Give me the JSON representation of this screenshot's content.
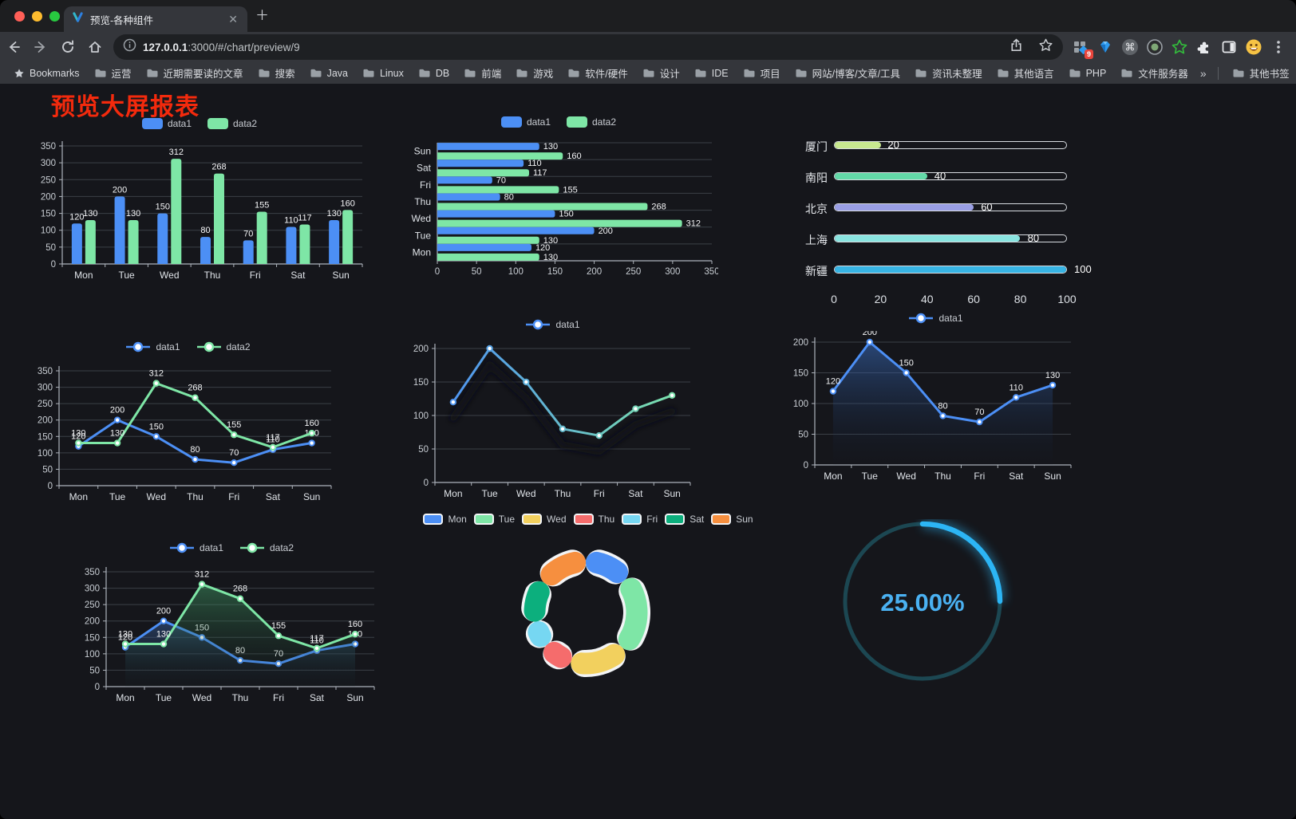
{
  "browser": {
    "tab_title": "预览-各种组件",
    "url_host": "127.0.0.1",
    "url_rest": ":3000/#/chart/preview/9",
    "bookmarks_label": "Bookmarks",
    "bookmark_folders": [
      "运营",
      "近期需要读的文章",
      "搜索",
      "Java",
      "Linux",
      "DB",
      "前端",
      "游戏",
      "软件/硬件",
      "设计",
      "IDE",
      "项目",
      "网站/博客/文章/工具",
      "资讯未整理",
      "其他语言",
      "PHP",
      "文件服务器"
    ],
    "bookmarks_overflow": "»",
    "other_bookmarks": "其他书签",
    "extension_badge": "9"
  },
  "page": {
    "title": "预览大屏报表",
    "title_color": "#F32A0D",
    "background": "#15161B"
  },
  "chart_data": [
    {
      "id": "bar-vertical",
      "type": "bar",
      "categories": [
        "Mon",
        "Tue",
        "Wed",
        "Thu",
        "Fri",
        "Sat",
        "Sun"
      ],
      "series": [
        {
          "name": "data1",
          "color": "#4C8FF5",
          "values": [
            120,
            200,
            150,
            80,
            70,
            110,
            130
          ]
        },
        {
          "name": "data2",
          "color": "#7EE6A6",
          "values": [
            130,
            130,
            312,
            268,
            155,
            117,
            160
          ]
        }
      ],
      "ylim": [
        0,
        350
      ],
      "ytick": 50,
      "legend_position": "top",
      "grid": true
    },
    {
      "id": "bar-horizontal",
      "type": "bar-horizontal",
      "categories": [
        "Sun",
        "Sat",
        "Fri",
        "Thu",
        "Wed",
        "Tue",
        "Mon"
      ],
      "series": [
        {
          "name": "data1",
          "color": "#4C8FF5",
          "values": [
            130,
            110,
            70,
            80,
            150,
            200,
            120
          ]
        },
        {
          "name": "data2",
          "color": "#7EE6A6",
          "values": [
            160,
            117,
            155,
            268,
            312,
            130,
            130
          ]
        }
      ],
      "xlim": [
        0,
        350
      ],
      "xtick": 50,
      "legend_position": "top",
      "grid": true
    },
    {
      "id": "capsule",
      "type": "capsule",
      "rows": [
        {
          "label": "厦门",
          "value": 20,
          "color": "#C8E88F"
        },
        {
          "label": "南阳",
          "value": 40,
          "color": "#63D9A8"
        },
        {
          "label": "北京",
          "value": 60,
          "color": "#9A9FE5"
        },
        {
          "label": "上海",
          "value": 80,
          "color": "#89E4E0"
        },
        {
          "label": "新疆",
          "value": 100,
          "color": "#37B4E4"
        }
      ],
      "xlim": [
        0,
        100
      ],
      "xticks": [
        0,
        20,
        40,
        60,
        80,
        100
      ]
    },
    {
      "id": "line-two",
      "type": "line",
      "categories": [
        "Mon",
        "Tue",
        "Wed",
        "Thu",
        "Fri",
        "Sat",
        "Sun"
      ],
      "series": [
        {
          "name": "data1",
          "color": "#4C8FF5",
          "values": [
            120,
            200,
            150,
            80,
            70,
            110,
            130
          ]
        },
        {
          "name": "data2",
          "color": "#7EE6A6",
          "values": [
            130,
            130,
            312,
            268,
            155,
            117,
            160
          ]
        }
      ],
      "ylim": [
        0,
        350
      ],
      "ytick": 50,
      "labels": true,
      "legend_position": "top"
    },
    {
      "id": "line-gradient",
      "type": "line",
      "categories": [
        "Mon",
        "Tue",
        "Wed",
        "Thu",
        "Fri",
        "Sat",
        "Sun"
      ],
      "series": [
        {
          "name": "data1",
          "colors": [
            "#4C8FF5",
            "#7EE6A6"
          ],
          "values": [
            120,
            200,
            150,
            80,
            70,
            110,
            130
          ]
        }
      ],
      "ylim": [
        0,
        200
      ],
      "ytick": 50,
      "labels": false,
      "shadow": true,
      "legend_position": "top"
    },
    {
      "id": "line-area",
      "type": "line",
      "area": true,
      "categories": [
        "Mon",
        "Tue",
        "Wed",
        "Thu",
        "Fri",
        "Sat",
        "Sun"
      ],
      "series": [
        {
          "name": "data1",
          "color": "#4C8FF5",
          "values": [
            120,
            200,
            150,
            80,
            70,
            110,
            130
          ],
          "area": [
            "rgba(62,120,210,0.50)",
            "rgba(15,25,45,0.05)"
          ]
        }
      ],
      "ylim": [
        0,
        200
      ],
      "ytick": 50,
      "labels": true,
      "legend_position": "top"
    },
    {
      "id": "line-area-two",
      "type": "line",
      "area": true,
      "categories": [
        "Mon",
        "Tue",
        "Wed",
        "Thu",
        "Fri",
        "Sat",
        "Sun"
      ],
      "series": [
        {
          "name": "data1",
          "color": "#4C8FF5",
          "values": [
            120,
            200,
            150,
            80,
            70,
            110,
            130
          ],
          "area": [
            "rgba(70,120,200,0.40)",
            "rgba(20,30,50,0.04)"
          ]
        },
        {
          "name": "data2",
          "color": "#7EE6A6",
          "values": [
            130,
            130,
            312,
            268,
            155,
            117,
            160
          ],
          "area": [
            "rgba(70,170,110,0.45)",
            "rgba(20,40,30,0.04)"
          ]
        }
      ],
      "ylim": [
        0,
        350
      ],
      "ytick": 50,
      "labels": true,
      "legend_position": "top"
    },
    {
      "id": "donut",
      "type": "pie",
      "legend_position": "top",
      "items": [
        {
          "name": "Mon",
          "value": 120,
          "color": "#4C8FF5"
        },
        {
          "name": "Tue",
          "value": 200,
          "color": "#7EE6A6"
        },
        {
          "name": "Wed",
          "value": 150,
          "color": "#F2D05E"
        },
        {
          "name": "Thu",
          "value": 80,
          "color": "#F56C6C"
        },
        {
          "name": "Fri",
          "value": 70,
          "color": "#76D7F2"
        },
        {
          "name": "Sat",
          "value": 110,
          "color": "#0CAF7D"
        },
        {
          "name": "Sun",
          "value": 130,
          "color": "#F68F3F"
        }
      ]
    },
    {
      "id": "gauge",
      "type": "gauge",
      "value_text": "25.00%",
      "percent": 25,
      "color": "#2CB5F5",
      "track_color": "#1C4752",
      "text_color": "#4AB1F2"
    }
  ]
}
